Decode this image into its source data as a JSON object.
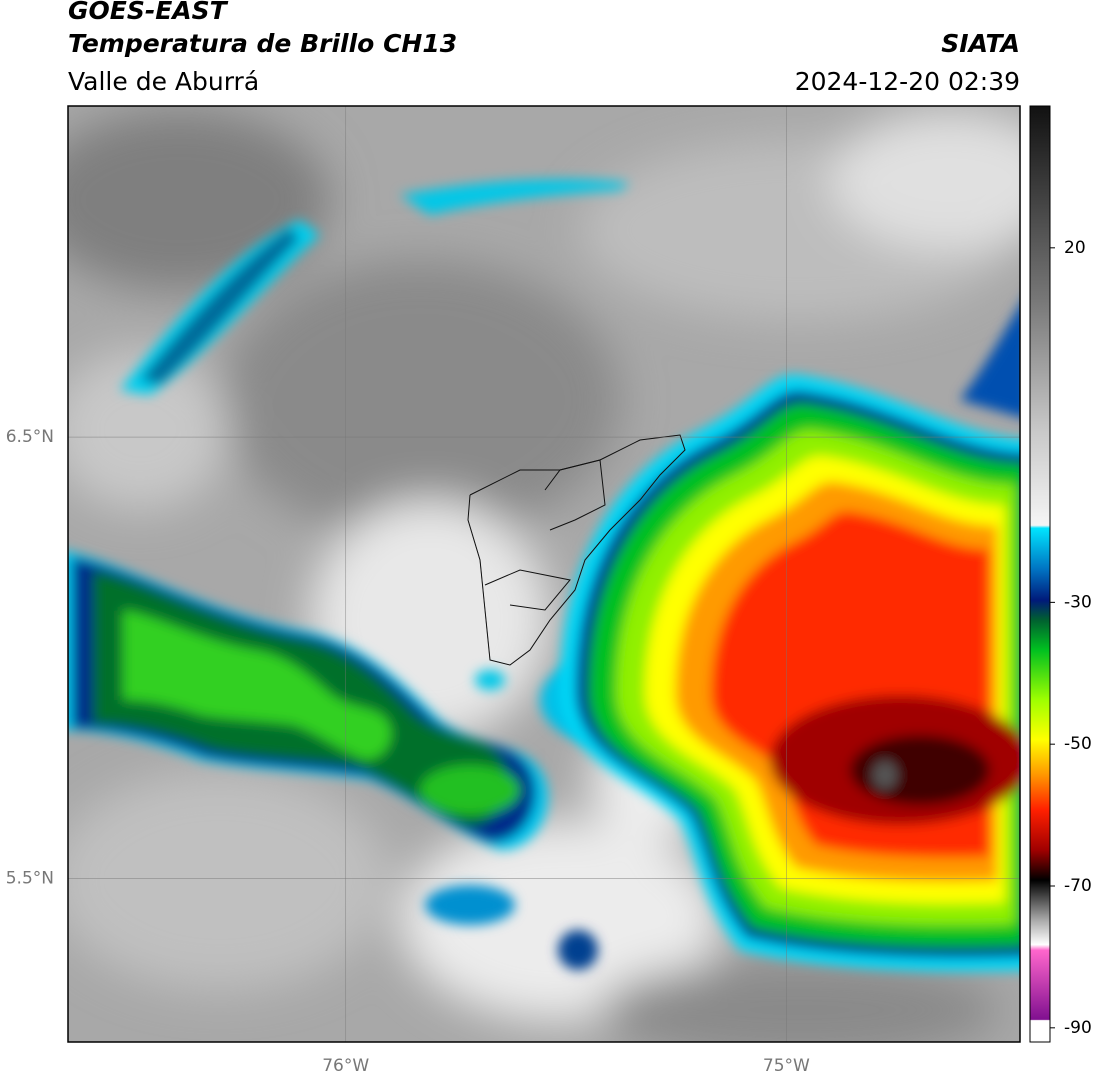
{
  "header": {
    "satellite": "GOES-EAST",
    "product": "Temperatura de Brillo CH13",
    "region": "Valle de Aburrá",
    "agency": "SIATA",
    "datetime": "2024-12-20 02:39"
  },
  "map": {
    "xlim": [
      -76.63,
      -74.47
    ],
    "ylim": [
      5.13,
      7.25
    ],
    "xticks": [
      {
        "value": -76,
        "label": "76°W"
      },
      {
        "value": -75,
        "label": "75°W"
      }
    ],
    "yticks": [
      {
        "value": 6.5,
        "label": "6.5°N"
      },
      {
        "value": 5.5,
        "label": "5.5°N"
      }
    ],
    "grid": true
  },
  "colorbar": {
    "lim": [
      -92,
      40
    ],
    "ticks": [
      20,
      -30,
      -50,
      -70,
      -90
    ]
  }
}
